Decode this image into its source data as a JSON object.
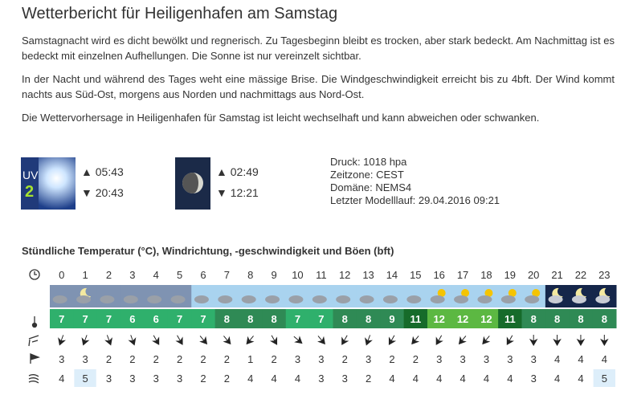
{
  "header": {
    "title": "Wetterbericht für Heiligenhafen am Samstag"
  },
  "paragraphs": [
    "Samstagnacht wird es dicht bewölkt und regnerisch. Zu Tagesbeginn bleibt es trocken, aber stark bedeckt. Am Nachmittag ist es bedeckt mit einzelnen Aufhellungen. Die Sonne ist nur vereinzelt sichtbar.",
    "In der Nacht und während des Tages weht eine mässige Brise. Die Windgeschwindigkeit erreicht bis zu 4bft. Der Wind kommt nachts aus Süd-Ost, morgens aus Norden und nachmittags aus Nord-Ost.",
    "Die Wettervorhersage in Heiligenhafen für Samstag ist leicht wechselhaft und kann abweichen oder schwanken."
  ],
  "sun": {
    "uv_label": "UV",
    "uv_index": "2",
    "rise": "05:43",
    "set": "20:43"
  },
  "moon": {
    "rise": "02:49",
    "set": "12:21"
  },
  "info": [
    "Druck: 1018 hpa",
    "Zeitzone: CEST",
    "Domäne: NEMS4",
    "Letzter Modelllauf: 29.04.2016 09:21"
  ],
  "table": {
    "title": "Stündliche Temperatur (°C), Windrichtung, -geschwindigkeit und Böen (bft)",
    "hours": [
      0,
      1,
      2,
      3,
      4,
      5,
      6,
      7,
      8,
      9,
      10,
      11,
      12,
      13,
      14,
      15,
      16,
      17,
      18,
      19,
      20,
      21,
      22,
      23
    ],
    "temperature": [
      7,
      7,
      7,
      6,
      6,
      7,
      7,
      8,
      8,
      8,
      7,
      7,
      8,
      8,
      9,
      11,
      12,
      12,
      12,
      11,
      8,
      8,
      8,
      8
    ],
    "temperature_colors": [
      "#2fb06c",
      "#2fb06c",
      "#2fb06c",
      "#2fb06c",
      "#2fb06c",
      "#2fb06c",
      "#2fb06c",
      "#2f8a55",
      "#2f8a55",
      "#2f8a55",
      "#2fb06c",
      "#2fb06c",
      "#2f8a55",
      "#2f8a55",
      "#2f8a55",
      "#166b2a",
      "#5cb842",
      "#5cb842",
      "#5cb842",
      "#166b2a",
      "#2f8a55",
      "#2f8a55",
      "#2f8a55",
      "#2f8a55"
    ],
    "wind_speed": [
      3,
      3,
      2,
      2,
      2,
      2,
      2,
      2,
      1,
      2,
      3,
      3,
      2,
      3,
      2,
      2,
      3,
      3,
      3,
      3,
      3,
      4,
      4,
      4
    ],
    "gusts": [
      4,
      5,
      3,
      3,
      3,
      3,
      2,
      2,
      4,
      4,
      4,
      3,
      3,
      2,
      4,
      4,
      4,
      4,
      4,
      4,
      3,
      4,
      4,
      5
    ],
    "gust_highlight_color": "#ddeefa"
  }
}
